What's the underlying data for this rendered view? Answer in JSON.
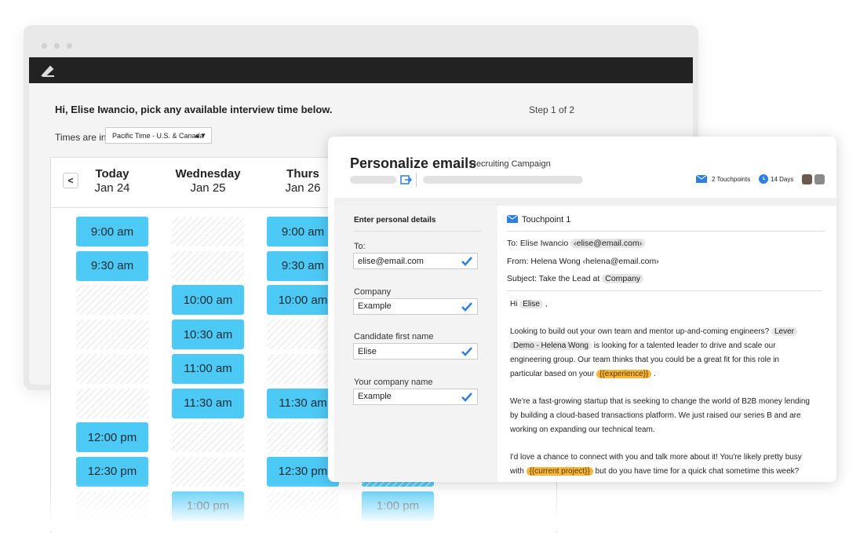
{
  "window": {
    "greeting": "Hi, Elise Iwancio, pick any available interview time below.",
    "step": "Step 1 of 2",
    "timezone_label": "Times are in",
    "timezone": "Pacific Time - U.S. & Canada"
  },
  "calendar": {
    "days": [
      {
        "name": "Today",
        "date": "Jan 24",
        "slots": [
          "9:00 am",
          "9:30 am",
          null,
          null,
          null,
          null,
          "12:00 pm",
          "12:30 pm",
          null
        ]
      },
      {
        "name": "Wednesday",
        "date": "Jan 25",
        "slots": [
          null,
          null,
          "10:00 am",
          "10:30 am",
          "11:00 am",
          "11:30 am",
          null,
          null,
          "1:00 pm"
        ]
      },
      {
        "name": "Thurs",
        "date": "Jan 26",
        "slots": [
          "9:00 am",
          "9:30 am",
          "10:00 am",
          null,
          null,
          "11:30 am",
          null,
          "12:30 pm",
          null
        ]
      },
      {
        "slots": [
          null,
          null,
          null,
          null,
          null,
          null,
          null,
          null,
          "1:00 pm"
        ]
      }
    ]
  },
  "email_panel": {
    "title": "Personalize emails",
    "campaign": "Recruiting Campaign",
    "touchpoints": "2 Touchpoints",
    "duration": "14 Days",
    "details": {
      "heading": "Enter personal details",
      "fields": [
        {
          "label": "To:",
          "value": "elise@email.com"
        },
        {
          "label": "Company",
          "value": "Example"
        },
        {
          "label": "Candidate first name",
          "value": "Elise"
        },
        {
          "label": "Your company name",
          "value": "Example"
        }
      ]
    },
    "preview": {
      "heading": "Touchpoint 1",
      "to": {
        "text": "To: Elise Iwancio",
        "chip": "‹elise@email.com›"
      },
      "from": "From: Helena Wong ‹helena@email.com›",
      "subject": {
        "text": "Subject: Take the Lead at",
        "chip": "Company"
      },
      "body": [
        [
          "Hi",
          {
            "chip": "Elise"
          },
          ","
        ],
        [
          "Looking to build out your own team and mentor up-and-coming engineers?",
          {
            "chip": "Lever Demo - Helena Wong"
          },
          "is looking for a talented leader to drive and scale our engineering group. Our team thinks that you could be a great fit for this role in particular based on your",
          {
            "variable": "{{experience}}"
          },
          "."
        ],
        [
          "We're a fast-growing startup that is seeking to change the world of B2B money lending by building a cloud-based transactions platform. We just raised our series B and are working on expanding our technical team."
        ],
        [
          "I'd love a chance to connect with you and talk more about it! You're likely pretty busy with",
          {
            "variable": "{{current project}}"
          },
          "but do you have time for a quick chat sometime this week?"
        ]
      ]
    }
  }
}
